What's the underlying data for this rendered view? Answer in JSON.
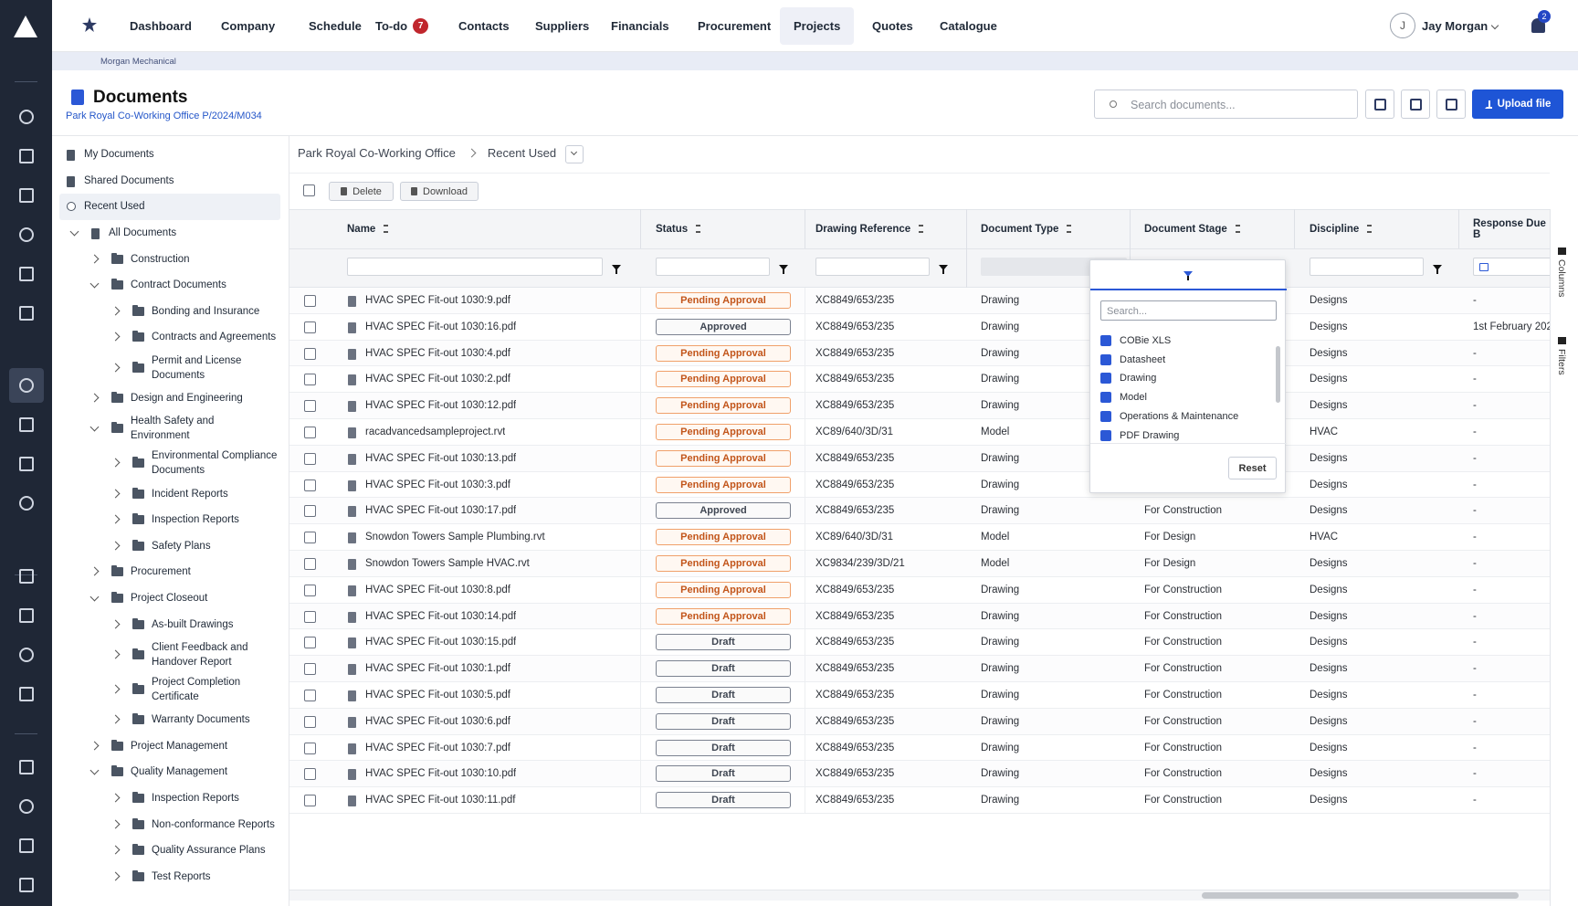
{
  "nav": {
    "items": [
      "Dashboard",
      "Company",
      "Schedule",
      "To-do",
      "Contacts",
      "Suppliers",
      "Financials",
      "Procurement",
      "Projects",
      "Quotes",
      "Catalogue"
    ],
    "active_index": 8,
    "todo_badge": 7,
    "user_initial": "J",
    "user_name": "Jay Morgan",
    "notification_badge": 2
  },
  "context": {
    "company": "Morgan Mechanical"
  },
  "header": {
    "title": "Documents",
    "subtitle": "Park Royal Co-Working Office P/2024/M034",
    "search_placeholder": "Search documents...",
    "upload_button": "Upload file"
  },
  "tree": [
    {
      "label": "My Documents",
      "level": 0,
      "state": "none",
      "icon": "file",
      "selected": false
    },
    {
      "label": "Shared Documents",
      "level": 0,
      "state": "none",
      "icon": "shared",
      "selected": false
    },
    {
      "label": "Recent Used",
      "level": 0,
      "state": "none",
      "icon": "clock",
      "selected": true
    },
    {
      "label": "All Documents",
      "level": 0,
      "state": "expanded",
      "icon": "all",
      "selected": false
    },
    {
      "label": "Construction",
      "level": 1,
      "state": "collapsed",
      "icon": "folder",
      "selected": false
    },
    {
      "label": "Contract Documents",
      "level": 1,
      "state": "expanded",
      "icon": "folder",
      "selected": false
    },
    {
      "label": "Bonding and Insurance",
      "level": 2,
      "state": "collapsed",
      "icon": "folder",
      "selected": false
    },
    {
      "label": "Contracts and Agreements",
      "level": 2,
      "state": "collapsed",
      "icon": "folder",
      "selected": false
    },
    {
      "label": "Permit and License Documents",
      "level": 2,
      "state": "collapsed",
      "icon": "folder",
      "selected": false
    },
    {
      "label": "Design and Engineering",
      "level": 1,
      "state": "collapsed",
      "icon": "folder",
      "selected": false
    },
    {
      "label": "Health Safety and Environment",
      "level": 1,
      "state": "expanded",
      "icon": "folder",
      "selected": false
    },
    {
      "label": "Environmental Compliance Documents",
      "level": 2,
      "state": "collapsed",
      "icon": "folder",
      "selected": false
    },
    {
      "label": "Incident Reports",
      "level": 2,
      "state": "collapsed",
      "icon": "folder",
      "selected": false
    },
    {
      "label": "Inspection Reports",
      "level": 2,
      "state": "collapsed",
      "icon": "folder",
      "selected": false
    },
    {
      "label": "Safety Plans",
      "level": 2,
      "state": "collapsed",
      "icon": "folder",
      "selected": false
    },
    {
      "label": "Procurement",
      "level": 1,
      "state": "collapsed",
      "icon": "folder",
      "selected": false
    },
    {
      "label": "Project Closeout",
      "level": 1,
      "state": "expanded",
      "icon": "folder",
      "selected": false
    },
    {
      "label": "As-built Drawings",
      "level": 2,
      "state": "collapsed",
      "icon": "folder",
      "selected": false
    },
    {
      "label": "Client Feedback and Handover Report",
      "level": 2,
      "state": "collapsed",
      "icon": "folder",
      "selected": false
    },
    {
      "label": "Project Completion Certificate",
      "level": 2,
      "state": "collapsed",
      "icon": "folder",
      "selected": false
    },
    {
      "label": "Warranty Documents",
      "level": 2,
      "state": "collapsed",
      "icon": "folder",
      "selected": false
    },
    {
      "label": "Project Management",
      "level": 1,
      "state": "collapsed",
      "icon": "folder",
      "selected": false
    },
    {
      "label": "Quality Management",
      "level": 1,
      "state": "expanded",
      "icon": "folder",
      "selected": false
    },
    {
      "label": "Inspection Reports",
      "level": 2,
      "state": "collapsed",
      "icon": "folder",
      "selected": false
    },
    {
      "label": "Non-conformance Reports",
      "level": 2,
      "state": "collapsed",
      "icon": "folder",
      "selected": false
    },
    {
      "label": "Quality Assurance Plans",
      "level": 2,
      "state": "collapsed",
      "icon": "folder",
      "selected": false
    },
    {
      "label": "Test Reports",
      "level": 2,
      "state": "collapsed",
      "icon": "folder",
      "selected": false
    }
  ],
  "breadcrumb": [
    "Park Royal Co-Working Office",
    "Recent Used"
  ],
  "toolbar": {
    "delete": "Delete",
    "download": "Download"
  },
  "table": {
    "columns": [
      "Name",
      "Status",
      "Drawing Reference",
      "Document Type",
      "Document Stage",
      "Discipline",
      "Response Due B"
    ],
    "rows": [
      [
        "HVAC SPEC Fit-out 1030:9.pdf",
        "Pending Approval",
        "XC8849/653/235",
        "Drawing",
        null,
        "Designs",
        "-"
      ],
      [
        "HVAC SPEC Fit-out 1030:16.pdf",
        "Approved",
        "XC8849/653/235",
        "Drawing",
        null,
        "Designs",
        "1st February 202"
      ],
      [
        "HVAC SPEC Fit-out 1030:4.pdf",
        "Pending Approval",
        "XC8849/653/235",
        "Drawing",
        null,
        "Designs",
        "-"
      ],
      [
        "HVAC SPEC Fit-out 1030:2.pdf",
        "Pending Approval",
        "XC8849/653/235",
        "Drawing",
        null,
        "Designs",
        "-"
      ],
      [
        "HVAC SPEC Fit-out 1030:12.pdf",
        "Pending Approval",
        "XC8849/653/235",
        "Drawing",
        null,
        "Designs",
        "-"
      ],
      [
        "racadvancedsampleproject.rvt",
        "Pending Approval",
        "XC89/640/3D/31",
        "Model",
        null,
        "HVAC",
        "-"
      ],
      [
        "HVAC SPEC Fit-out 1030:13.pdf",
        "Pending Approval",
        "XC8849/653/235",
        "Drawing",
        null,
        "Designs",
        "-"
      ],
      [
        "HVAC SPEC Fit-out 1030:3.pdf",
        "Pending Approval",
        "XC8849/653/235",
        "Drawing",
        null,
        "Designs",
        "-"
      ],
      [
        "HVAC SPEC Fit-out 1030:17.pdf",
        "Approved",
        "XC8849/653/235",
        "Drawing",
        "For Construction",
        "Designs",
        "-"
      ],
      [
        "Snowdon Towers Sample Plumbing.rvt",
        "Pending Approval",
        "XC89/640/3D/31",
        "Model",
        "For Design",
        "HVAC",
        "-"
      ],
      [
        "Snowdon Towers Sample HVAC.rvt",
        "Pending Approval",
        "XC9834/239/3D/21",
        "Model",
        "For Design",
        "Designs",
        "-"
      ],
      [
        "HVAC SPEC Fit-out 1030:8.pdf",
        "Pending Approval",
        "XC8849/653/235",
        "Drawing",
        "For Construction",
        "Designs",
        "-"
      ],
      [
        "HVAC SPEC Fit-out 1030:14.pdf",
        "Pending Approval",
        "XC8849/653/235",
        "Drawing",
        "For Construction",
        "Designs",
        "-"
      ],
      [
        "HVAC SPEC Fit-out 1030:15.pdf",
        "Draft",
        "XC8849/653/235",
        "Drawing",
        "For Construction",
        "Designs",
        "-"
      ],
      [
        "HVAC SPEC Fit-out 1030:1.pdf",
        "Draft",
        "XC8849/653/235",
        "Drawing",
        "For Construction",
        "Designs",
        "-"
      ],
      [
        "HVAC SPEC Fit-out 1030:5.pdf",
        "Draft",
        "XC8849/653/235",
        "Drawing",
        "For Construction",
        "Designs",
        "-"
      ],
      [
        "HVAC SPEC Fit-out 1030:6.pdf",
        "Draft",
        "XC8849/653/235",
        "Drawing",
        "For Construction",
        "Designs",
        "-"
      ],
      [
        "HVAC SPEC Fit-out 1030:7.pdf",
        "Draft",
        "XC8849/653/235",
        "Drawing",
        "For Construction",
        "Designs",
        "-"
      ],
      [
        "HVAC SPEC Fit-out 1030:10.pdf",
        "Draft",
        "XC8849/653/235",
        "Drawing",
        "For Construction",
        "Designs",
        "-"
      ],
      [
        "HVAC SPEC Fit-out 1030:11.pdf",
        "Draft",
        "XC8849/653/235",
        "Drawing",
        "For Construction",
        "Designs",
        "-"
      ]
    ]
  },
  "filter_popup": {
    "search_placeholder": "Search...",
    "options": [
      "COBie XLS",
      "Datasheet",
      "Drawing",
      "Model",
      "Operations & Maintenance",
      "PDF Drawing"
    ],
    "reset": "Reset"
  },
  "side_tabs": [
    "Columns",
    "Filters"
  ]
}
